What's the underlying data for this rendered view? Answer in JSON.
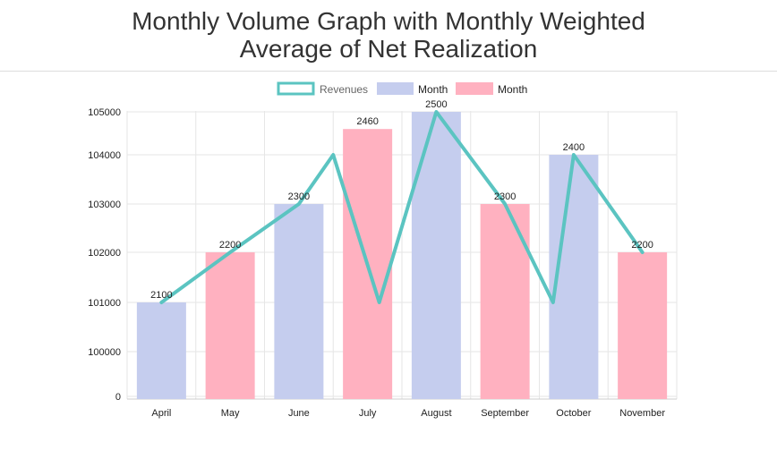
{
  "title_line1": "Monthly Volume Graph with Monthly Weighted",
  "title_line2": "Average of Net Realization",
  "colors": {
    "line": "#5bc4c1",
    "bar_blue": "#c5cdee",
    "bar_pink": "#ffb1c0",
    "grid": "#e6e6e6",
    "legend_line_text": "#666666"
  },
  "chart_data": {
    "type": "bar",
    "categories": [
      "April",
      "May",
      "June",
      "July",
      "August",
      "September",
      "October",
      "November"
    ],
    "y_ticks": [
      "0",
      "100000",
      "101000",
      "102000",
      "103000",
      "104000",
      "105000"
    ],
    "ylim": [
      0,
      105000
    ],
    "legend_position": "top",
    "legend": [
      {
        "name": "Revenues",
        "type": "line"
      },
      {
        "name": "Month",
        "type": "bar",
        "color": "#c5cdee"
      },
      {
        "name": "Month",
        "type": "bar",
        "color": "#ffb1c0"
      }
    ],
    "bars": {
      "values": [
        101000,
        102000,
        103000,
        104600,
        105000,
        103000,
        104000,
        102000
      ],
      "colors": [
        "#c5cdee",
        "#ffb1c0",
        "#c5cdee",
        "#ffb1c0",
        "#c5cdee",
        "#ffb1c0",
        "#c5cdee",
        "#ffb1c0"
      ],
      "labels": [
        "2100",
        "2200",
        "2300",
        "2460",
        "2500",
        "2300",
        "2400",
        "2200"
      ]
    },
    "line": {
      "name": "Revenues",
      "values": [
        101000,
        102000,
        103000,
        104000,
        101000,
        105000,
        103000,
        101000,
        104000,
        102000
      ],
      "x_positions": [
        0,
        1,
        2,
        2.5,
        3.17,
        4,
        5,
        5.7,
        6,
        7
      ]
    },
    "grid": true
  }
}
